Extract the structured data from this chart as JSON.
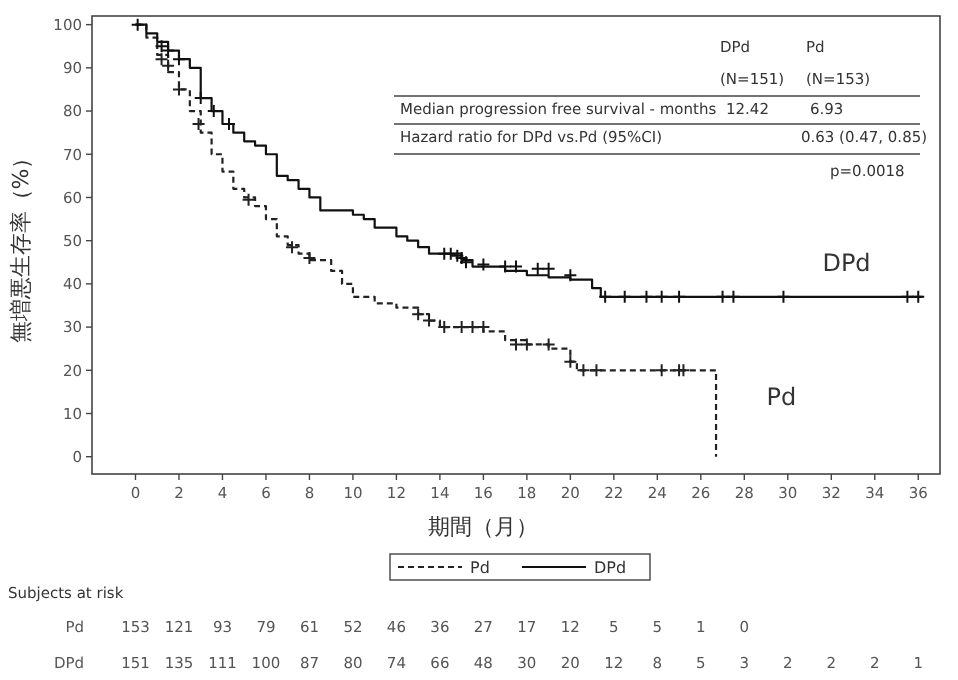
{
  "chart_data": {
    "type": "step",
    "xlabel": "期間（月）",
    "ylabel": "無増悪生存率（%）",
    "xlim": [
      -2,
      37
    ],
    "ylim": [
      -4,
      102
    ],
    "xticks": [
      0,
      2,
      4,
      6,
      8,
      10,
      12,
      14,
      16,
      18,
      20,
      22,
      24,
      26,
      28,
      30,
      32,
      34,
      36
    ],
    "yticks": [
      0,
      10,
      20,
      30,
      40,
      50,
      60,
      70,
      80,
      90,
      100
    ],
    "grid": false,
    "legend": "bottom",
    "series": [
      {
        "name": "Pd",
        "color": "#222222",
        "line_style": "dashed",
        "marker": "none",
        "x": [
          0,
          0.5,
          1,
          1.5,
          2,
          2.5,
          3,
          3.5,
          4,
          4.5,
          5,
          5.5,
          6,
          6.5,
          7,
          7.5,
          8,
          9,
          9.5,
          10,
          11,
          12,
          13,
          13.5,
          14,
          16,
          17,
          18,
          19,
          20,
          20.3,
          26.7
        ],
        "values": [
          100,
          97,
          93,
          89,
          85,
          80,
          75,
          70,
          66,
          62,
          60,
          58,
          55,
          51,
          49,
          47,
          45.5,
          43,
          40,
          37,
          35.5,
          34.5,
          33,
          31.5,
          30,
          29,
          27,
          26,
          25,
          22,
          20,
          0
        ]
      },
      {
        "name": "DPd",
        "color": "#111111",
        "line_style": "solid",
        "marker": "none",
        "x": [
          0,
          0.5,
          1,
          1.5,
          2,
          2.5,
          3,
          3.5,
          4,
          4.5,
          5,
          5.5,
          6,
          6.5,
          7,
          7.5,
          8,
          8.5,
          10,
          10.5,
          11,
          12,
          12.5,
          13,
          13.5,
          15,
          15.5,
          17,
          18,
          19,
          20,
          21,
          21.4,
          36.2
        ],
        "values": [
          100,
          98,
          96,
          94,
          92,
          90,
          83,
          80,
          77,
          75,
          73,
          72,
          70,
          65,
          64,
          62,
          60,
          57,
          56,
          55,
          53,
          51,
          50,
          48.5,
          47,
          45.5,
          44,
          43,
          42,
          41.5,
          41,
          39,
          37,
          37
        ]
      },
      {
        "type": "scatter",
        "color": "#222222",
        "marker": "cross",
        "x": [
          1.2,
          1.5,
          2,
          2.9,
          5.2,
          7.2,
          8,
          13,
          13.5,
          14.2,
          15,
          15.5,
          16,
          17.5,
          18,
          19,
          20,
          20.6,
          21.2,
          24.2,
          25,
          25.2
        ],
        "values": [
          92,
          90.5,
          85,
          77,
          59.5,
          48.5,
          46,
          33,
          31.5,
          30,
          30,
          30,
          30,
          26,
          26,
          26,
          22,
          20,
          20,
          20,
          20,
          20
        ]
      },
      {
        "type": "scatter",
        "color": "#111111",
        "marker": "cross",
        "x": [
          0.1,
          1.2,
          1.5,
          2,
          3,
          3.6,
          4.3,
          14.2,
          14.5,
          14.8,
          15,
          15.2,
          16,
          17,
          17.5,
          18.5,
          19,
          20,
          21.6,
          22.5,
          23.5,
          24.2,
          25,
          27,
          27.5,
          29.8,
          35.5,
          36
        ],
        "values": [
          100,
          95,
          94,
          92,
          83,
          80,
          77,
          47,
          47,
          46.5,
          46,
          45,
          44.5,
          44,
          44,
          43.5,
          43.5,
          42,
          37,
          37,
          37,
          37,
          37,
          37,
          37,
          37,
          37,
          37
        ]
      }
    ],
    "annotations": [
      "DPd",
      "Pd",
      "(N=151)",
      "(N=153)",
      "Median progression free survival - months",
      "12.42",
      "6.93",
      "Hazard ratio for DPd vs.Pd (95%CI)",
      "0.63 (0.47, 0.85)",
      "p=0.0018",
      "Subjects at risk",
      "153 121 93 79 61 52 46 36 27 17 12 5 5 1 0",
      "151 135 111 100 87 80 74 66 48 30 20 12 8 5 3 2 2 2 1"
    ]
  }
}
